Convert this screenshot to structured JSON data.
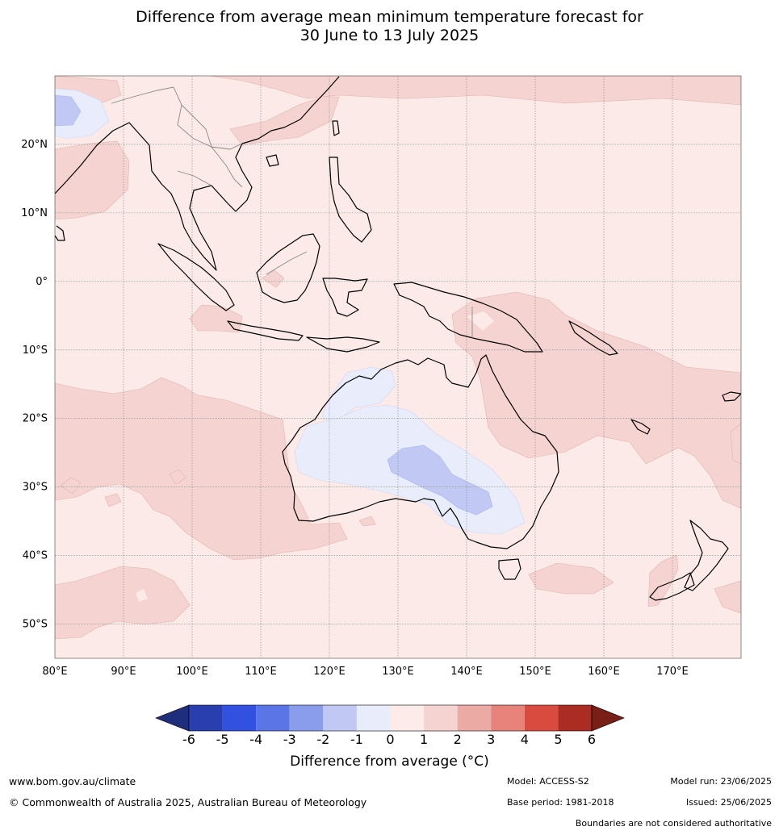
{
  "title": {
    "line1": "Difference from average mean minimum temperature forecast for",
    "line2": "30 June to 13 July 2025"
  },
  "map": {
    "lon_range": [
      80,
      180
    ],
    "lat_range": [
      -55,
      30
    ],
    "lat_labels": [
      "20°N",
      "10°N",
      "0°",
      "10°S",
      "20°S",
      "30°S",
      "40°S",
      "50°S"
    ],
    "lon_labels": [
      "80°E",
      "90°E",
      "100°E",
      "110°E",
      "120°E",
      "130°E",
      "140°E",
      "150°E",
      "160°E",
      "170°E"
    ],
    "gridlines": true,
    "background_color": "#fbeae8"
  },
  "colorbar": {
    "title": "Difference from average (°C)",
    "tick_labels": [
      "-6",
      "-5",
      "-4",
      "-3",
      "-2",
      "-1",
      "0",
      "1",
      "2",
      "3",
      "4",
      "5",
      "6"
    ],
    "colors": [
      "#1f2d7d",
      "#2a3faf",
      "#3251e0",
      "#5b75e6",
      "#8a9ded",
      "#c0c8f3",
      "#e8ecfb",
      "#fcebe9",
      "#f4d3d0",
      "#ecaaa5",
      "#e8837c",
      "#d94a3f",
      "#aa2c22",
      "#7a1e18"
    ]
  },
  "footer": {
    "website": "www.bom.gov.au/climate",
    "copyright": "© Commonwealth of Australia 2025, Australian Bureau of Meteorology",
    "model": "Model: ACCESS-S2",
    "base_period": "Base period: 1981-2018",
    "model_run": "Model run: 23/06/2025",
    "issued": "Issued: 25/06/2025",
    "disclaimer": "Boundaries are not considered authoritative"
  }
}
